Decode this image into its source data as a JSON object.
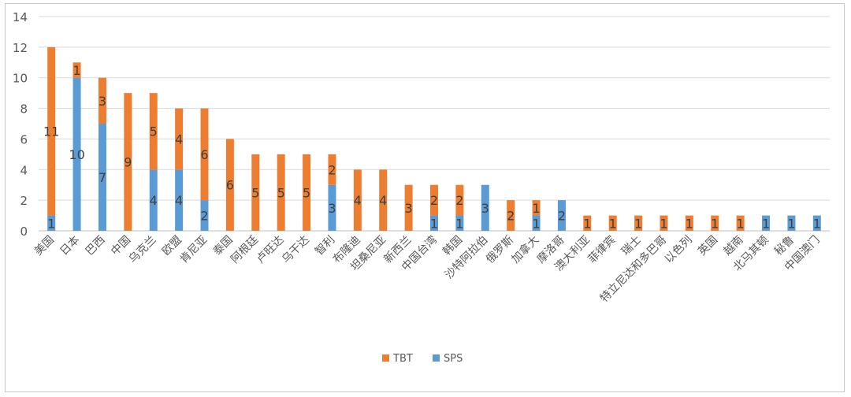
{
  "chart_data": {
    "type": "bar",
    "stacked": true,
    "title": "",
    "xlabel": "",
    "ylabel": "",
    "ylim": [
      0,
      14
    ],
    "yticks": [
      0,
      2,
      4,
      6,
      8,
      10,
      12,
      14
    ],
    "grid": true,
    "legend_position": "bottom",
    "categories": [
      "美国",
      "日本",
      "巴西",
      "中国",
      "乌克兰",
      "欧盟",
      "肯尼亚",
      "泰国",
      "阿根廷",
      "卢旺达",
      "乌干达",
      "智利",
      "布隆迪",
      "坦桑尼亚",
      "新西兰",
      "中国台湾",
      "韩国",
      "沙特阿拉伯",
      "俄罗斯",
      "加拿大",
      "摩洛哥",
      "澳大利亚",
      "菲律宾",
      "瑞士",
      "特立尼达和多巴哥",
      "以色列",
      "英国",
      "越南",
      "北马其顿",
      "秘鲁",
      "中国澳门"
    ],
    "series": [
      {
        "name": "SPS",
        "color": "#5b9bd5",
        "values": [
          1,
          10,
          7,
          0,
          4,
          4,
          2,
          0,
          0,
          0,
          0,
          3,
          0,
          0,
          0,
          1,
          1,
          3,
          0,
          1,
          2,
          0,
          0,
          0,
          0,
          0,
          0,
          0,
          1,
          1,
          1
        ]
      },
      {
        "name": "TBT",
        "color": "#ed7d31",
        "values": [
          11,
          1,
          3,
          9,
          5,
          4,
          6,
          6,
          5,
          5,
          5,
          2,
          4,
          4,
          3,
          2,
          2,
          0,
          2,
          1,
          0,
          1,
          1,
          1,
          1,
          1,
          1,
          1,
          0,
          0,
          0
        ]
      }
    ],
    "legend": [
      {
        "name": "TBT",
        "color": "#ed7d31"
      },
      {
        "name": "SPS",
        "color": "#5b9bd5"
      }
    ]
  }
}
